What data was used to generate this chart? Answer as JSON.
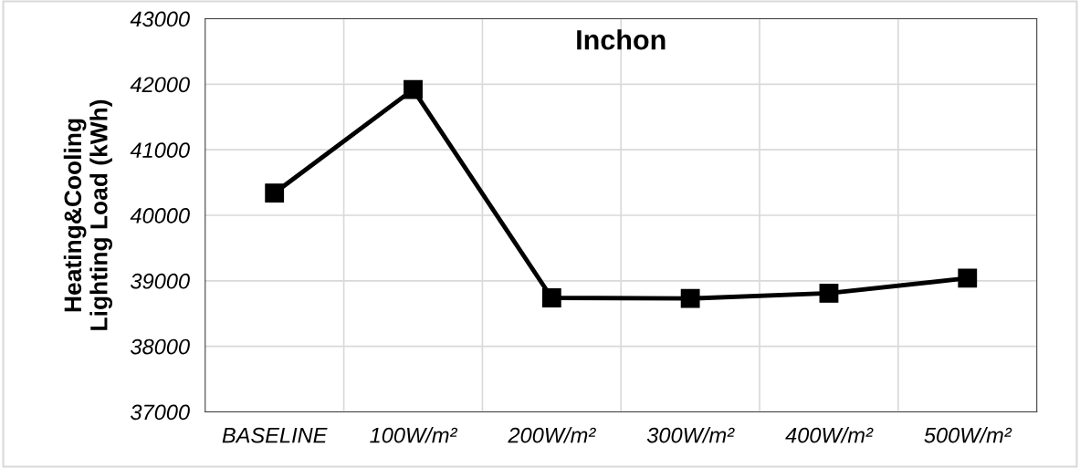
{
  "chart_data": {
    "type": "line",
    "title": "Inchon",
    "ylabel": "Heating&Cooling\nLighting Load (kWh)",
    "categories": [
      "BASELINE",
      "100W/m²",
      "200W/m²",
      "300W/m²",
      "400W/m²",
      "500W/m²"
    ],
    "series": [
      {
        "color": "#000000",
        "values": [
          40340,
          41920,
          38740,
          38730,
          38810,
          39040
        ]
      }
    ],
    "ylim": [
      37000,
      43000
    ],
    "yticks": [
      37000,
      38000,
      39000,
      40000,
      41000,
      42000,
      43000
    ],
    "grid": true,
    "marker": "square",
    "line_style": "solid"
  }
}
